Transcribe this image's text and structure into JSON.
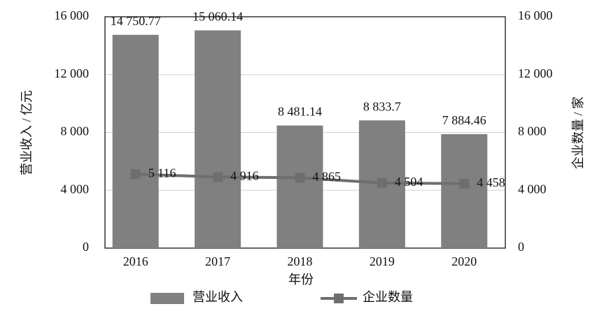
{
  "chart_data": {
    "type": "combo",
    "x_label": "年份",
    "y_label": "营业收入 / 亿元",
    "y2_label": "企业数量 / 家",
    "categories": [
      "2016",
      "2017",
      "2018",
      "2019",
      "2020"
    ],
    "series": [
      {
        "name": "营业收入",
        "type": "bar",
        "color": "#808080",
        "values": [
          14750.77,
          15060.14,
          8481.14,
          8833.7,
          7884.46
        ],
        "value_labels": [
          "14 750.77",
          "15 060.14",
          "8 481.14",
          "8 833.7",
          "7 884.46"
        ]
      },
      {
        "name": "企业数量",
        "type": "line",
        "axis": "y2",
        "color": "#6e6e6e",
        "values": [
          5116,
          4916,
          4865,
          4504,
          4458
        ],
        "value_labels": [
          "5 116",
          "4 916",
          "4 865",
          "4 504",
          "4 458"
        ]
      }
    ],
    "ylim": [
      0,
      16000
    ],
    "yticks": [
      0,
      {
        "value": 4000,
        "label": "4 000"
      },
      {
        "value": 8000,
        "label": "8 000"
      },
      {
        "value": 12000,
        "label": "12 000"
      },
      {
        "value": 16000,
        "label": "16 000"
      }
    ],
    "y2lim": [
      0,
      16000
    ],
    "y2ticks": [
      0,
      {
        "value": 4000,
        "label": "4 000"
      },
      {
        "value": 8000,
        "label": "8 000"
      },
      {
        "value": 12000,
        "label": "12 000"
      },
      {
        "value": 16000,
        "label": "16 000"
      }
    ],
    "grid": true
  }
}
